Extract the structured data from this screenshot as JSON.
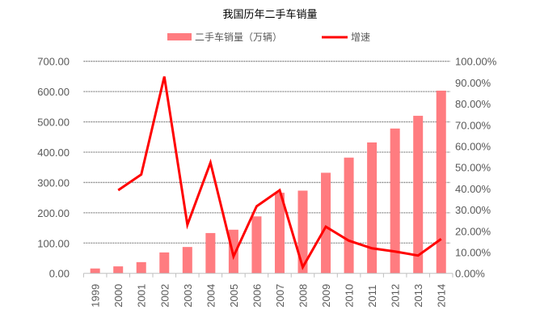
{
  "chart_data": {
    "type": "bar+line",
    "title": "我国历年二手车销量",
    "categories": [
      "1999",
      "2000",
      "2001",
      "2002",
      "2003",
      "2004",
      "2005",
      "2006",
      "2007",
      "2008",
      "2009",
      "2010",
      "2011",
      "2012",
      "2013",
      "2014"
    ],
    "series": [
      {
        "name": "二手车销量（万辆）",
        "type": "bar",
        "axis": "left",
        "color": "#FF7C80",
        "values": [
          16,
          23,
          37,
          69,
          87,
          133,
          144,
          188,
          266,
          273,
          332,
          382,
          432,
          478,
          520,
          603
        ]
      },
      {
        "name": "增速",
        "type": "line",
        "axis": "right",
        "color": "#FF0000",
        "values": [
          null,
          39.2,
          46.6,
          92.8,
          22.9,
          52.2,
          8.0,
          31.6,
          39.2,
          2.9,
          22.0,
          15.4,
          11.8,
          10.3,
          8.4,
          16.2
        ]
      }
    ],
    "y_left": {
      "range": [
        0,
        700
      ],
      "ticks": [
        "0.00",
        "100.00",
        "200.00",
        "300.00",
        "400.00",
        "500.00",
        "600.00",
        "700.00"
      ]
    },
    "y_right": {
      "range": [
        0,
        100
      ],
      "ticks": [
        "0.00%",
        "10.00%",
        "20.00%",
        "30.00%",
        "40.00%",
        "50.00%",
        "60.00%",
        "70.00%",
        "80.00%",
        "90.00%",
        "100.00%"
      ]
    },
    "grid": true,
    "legend": "top"
  }
}
